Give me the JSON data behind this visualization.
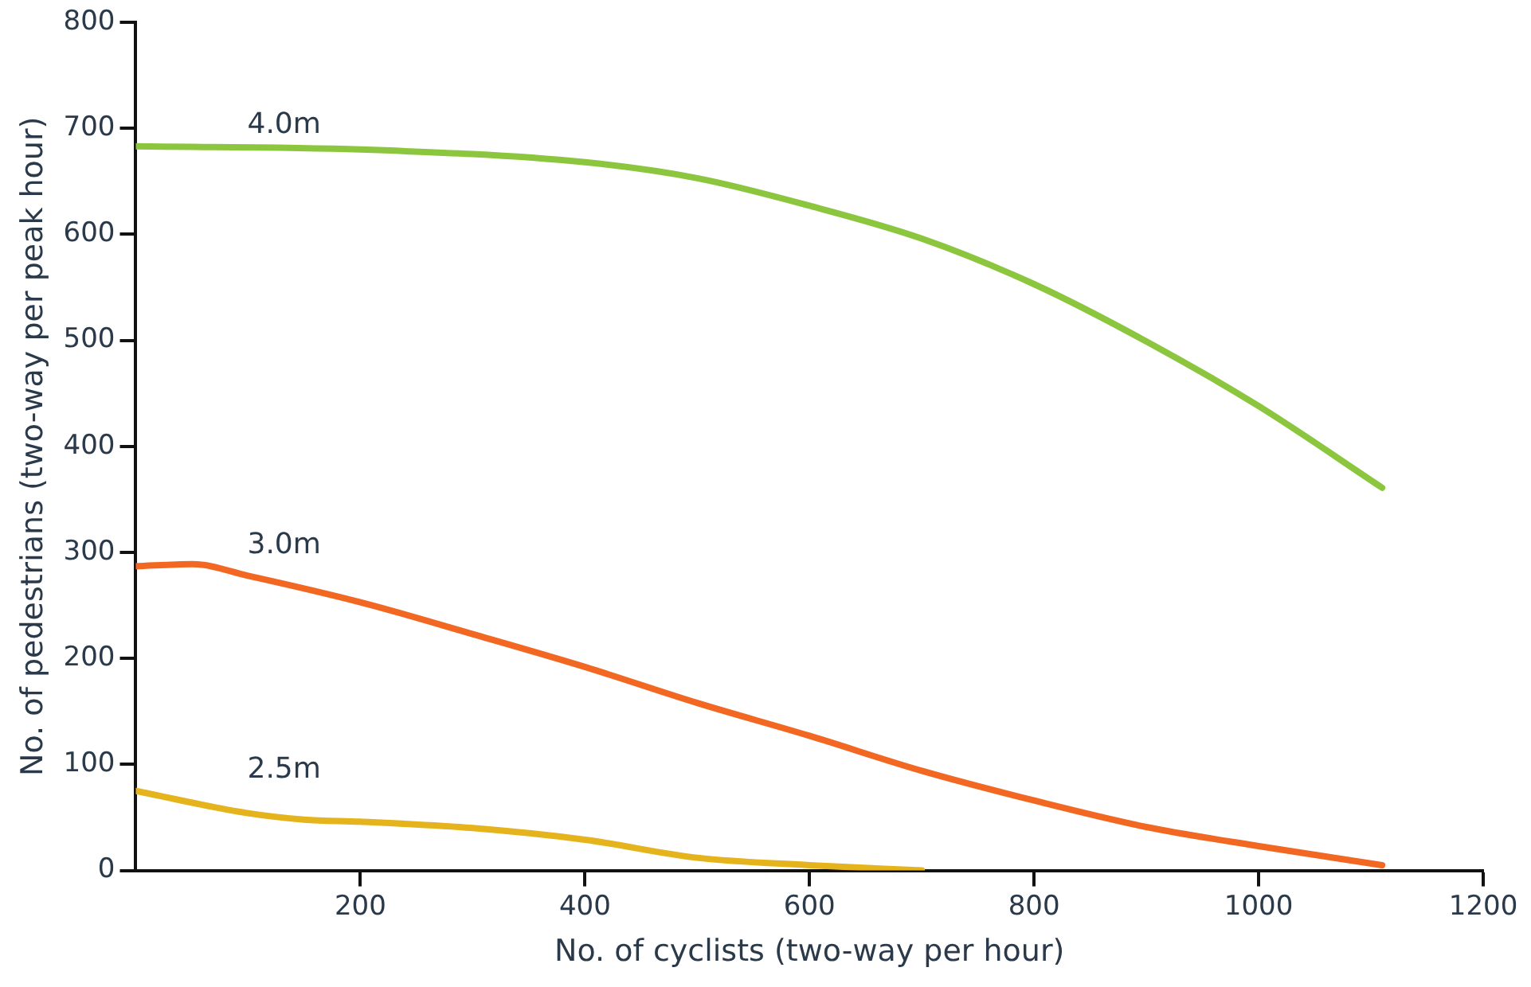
{
  "chart_data": {
    "type": "line",
    "xlabel": "No. of cyclists (two-way per hour)",
    "ylabel": "No. of pedestrians (two-way per peak hour)",
    "xlim": [
      0,
      1200
    ],
    "xticks": [
      200,
      400,
      600,
      800,
      1000,
      1200
    ],
    "ylim": [
      0,
      800
    ],
    "yticks": [
      0,
      100,
      200,
      300,
      400,
      500,
      600,
      700,
      800
    ],
    "grid": false,
    "legend": false,
    "marker": "none",
    "line_style": "solid",
    "series": [
      {
        "name": "4.0m",
        "color": "#8cc63f",
        "x": [
          0,
          200,
          400,
          500,
          600,
          700,
          800,
          900,
          1000,
          1110
        ],
        "values": [
          683,
          680,
          668,
          653,
          627,
          596,
          553,
          499,
          438,
          361
        ]
      },
      {
        "name": "3.0m",
        "color": "#f26722",
        "x": [
          0,
          50,
          100,
          200,
          300,
          400,
          500,
          600,
          700,
          800,
          900,
          1000,
          1110
        ],
        "values": [
          287,
          289,
          278,
          253,
          223,
          192,
          158,
          127,
          94,
          66,
          41,
          23,
          5
        ]
      },
      {
        "name": "2.5m",
        "color": "#e5b31b",
        "x": [
          0,
          100,
          150,
          200,
          300,
          400,
          500,
          600,
          700
        ],
        "values": [
          75,
          54,
          48,
          46,
          40,
          29,
          12,
          5,
          0
        ]
      }
    ]
  }
}
